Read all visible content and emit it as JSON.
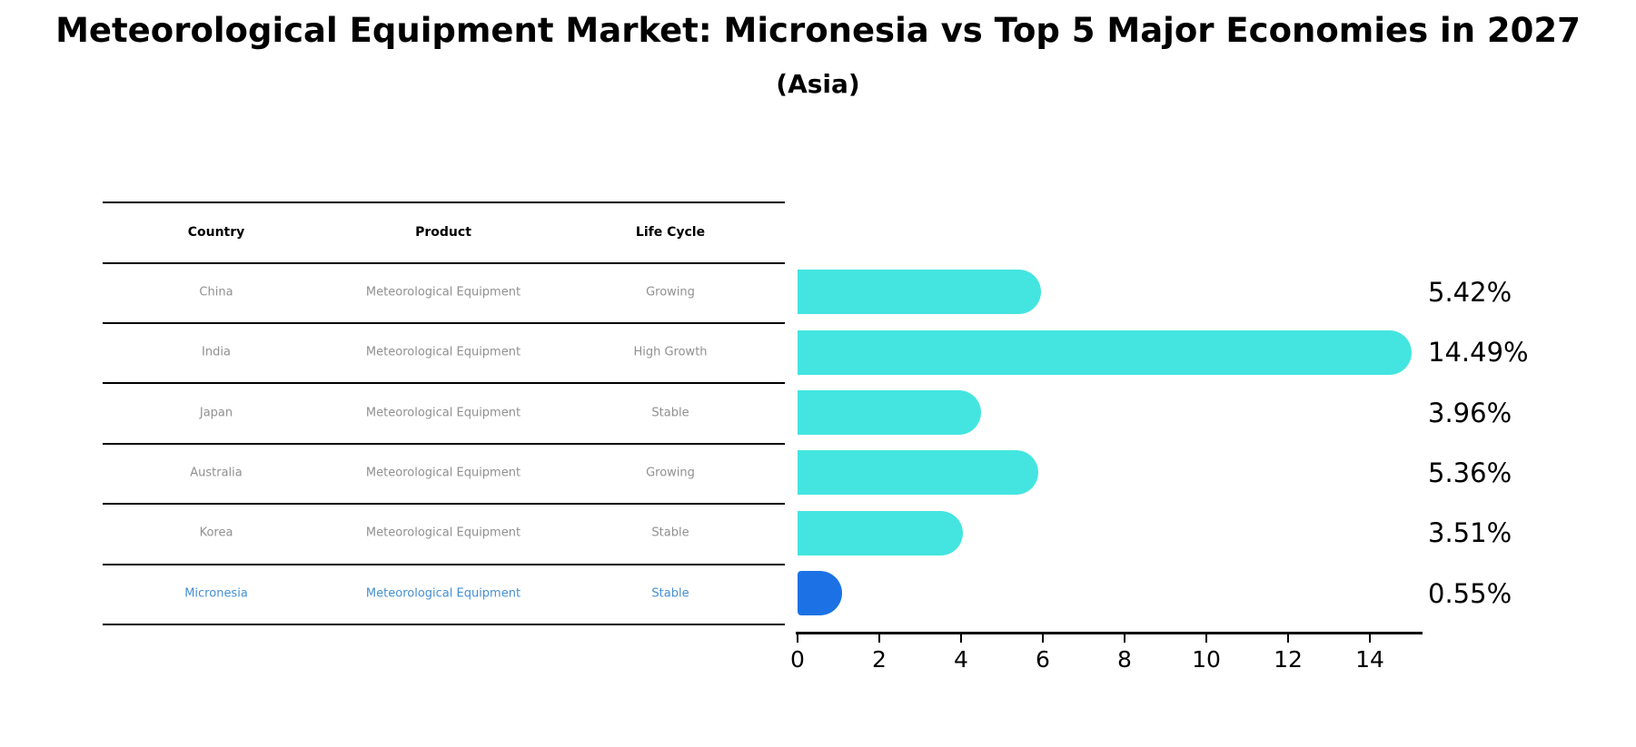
{
  "header": {
    "title": "Meteorological Equipment Market: Micronesia vs Top 5 Major Economies in 2027",
    "subtitle": "(Asia)"
  },
  "table": {
    "columns": [
      "Country",
      "Product",
      "Life Cycle"
    ],
    "rows": [
      {
        "country": "China",
        "product": "Meteorological Equipment",
        "life_cycle": "Growing",
        "highlight": false
      },
      {
        "country": "India",
        "product": "Meteorological Equipment",
        "life_cycle": "High Growth",
        "highlight": false
      },
      {
        "country": "Japan",
        "product": "Meteorological Equipment",
        "life_cycle": "Stable",
        "highlight": false
      },
      {
        "country": "Australia",
        "product": "Meteorological Equipment",
        "life_cycle": "Growing",
        "highlight": false
      },
      {
        "country": "Korea",
        "product": "Meteorological Equipment",
        "life_cycle": "Stable",
        "highlight": false
      },
      {
        "country": "Micronesia",
        "product": "Meteorological Equipment",
        "life_cycle": "Stable",
        "highlight": true
      }
    ]
  },
  "chart_data": {
    "type": "bar",
    "orientation": "horizontal",
    "title": "Meteorological Equipment Market: Micronesia vs Top 5 Major Economies in 2027",
    "subtitle": "(Asia)",
    "categories": [
      "China",
      "India",
      "Japan",
      "Australia",
      "Korea",
      "Micronesia"
    ],
    "values": [
      5.42,
      14.49,
      3.96,
      5.36,
      3.51,
      0.55
    ],
    "value_labels": [
      "5.42%",
      "14.49%",
      "3.96%",
      "5.36%",
      "3.51%",
      "0.55%"
    ],
    "xlim": [
      0,
      15.3
    ],
    "xticks": [
      0,
      2,
      4,
      6,
      8,
      10,
      12,
      14
    ],
    "grid": false,
    "legend": null,
    "bar_color": "#44e5e0",
    "highlight_color": "#1c72e4",
    "highlight_index": 5
  },
  "colors": {
    "bar_cyan": "#44e5e0",
    "bar_blue": "#1c72e4",
    "row_text_gray": "#909090",
    "highlight_text_blue": "#4590d2",
    "line_black": "#000000"
  }
}
